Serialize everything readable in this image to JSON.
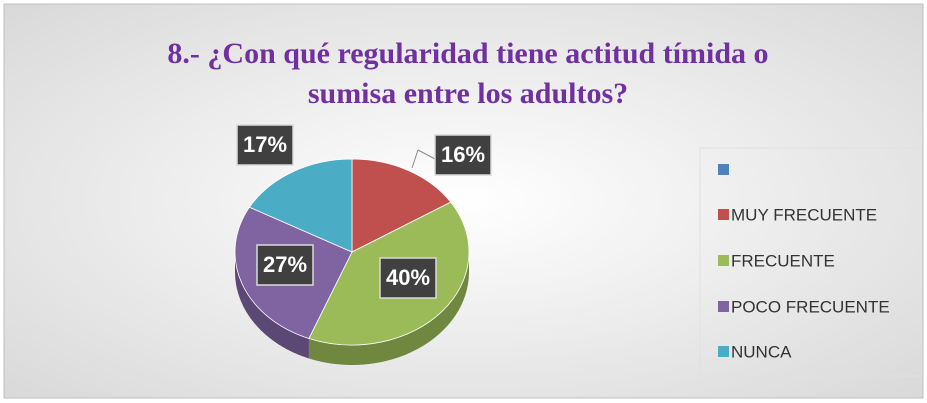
{
  "chart_data": {
    "type": "pie",
    "title": [
      "8.- ¿Con qué regularidad tiene actitud tímida o",
      "sumisa entre los adultos?"
    ],
    "categories": [
      null,
      "MUY FRECUENTE",
      "FRECUENTE",
      "POCO FRECUENTE",
      "NUNCA"
    ],
    "values": [
      0,
      16,
      40,
      27,
      17
    ],
    "value_labels": [
      null,
      "16%",
      "40%",
      "27%",
      "17%"
    ],
    "colors": [
      "#4f81bd",
      "#c0504d",
      "#9bbb59",
      "#8064a2",
      "#4bacc6"
    ],
    "legend": "right"
  }
}
